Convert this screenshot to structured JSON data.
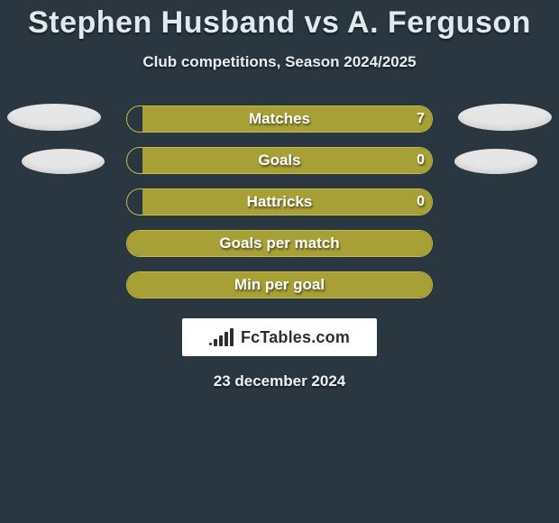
{
  "title": "Stephen Husband vs A. Ferguson",
  "subtitle": "Club competitions, Season 2024/2025",
  "date": "23 december 2024",
  "brand": {
    "name": "FcTables.com"
  },
  "colors": {
    "background": "#2a3740",
    "bar_fill": "#a7a036",
    "bar_border": "#c5bb47",
    "blob": "#e6e6e6",
    "text": "#ffffff"
  },
  "stats": [
    {
      "label": "Matches",
      "left_pct": 0,
      "right_pct": 95,
      "right_value": "7",
      "show_value": true
    },
    {
      "label": "Goals",
      "left_pct": 0,
      "right_pct": 95,
      "right_value": "0",
      "show_value": true
    },
    {
      "label": "Hattricks",
      "left_pct": 0,
      "right_pct": 95,
      "right_value": "0",
      "show_value": true
    },
    {
      "label": "Goals per match",
      "left_pct": 100,
      "right_pct": 0,
      "right_value": "",
      "show_value": false
    },
    {
      "label": "Min per goal",
      "left_pct": 100,
      "right_pct": 0,
      "right_value": "",
      "show_value": false
    }
  ]
}
